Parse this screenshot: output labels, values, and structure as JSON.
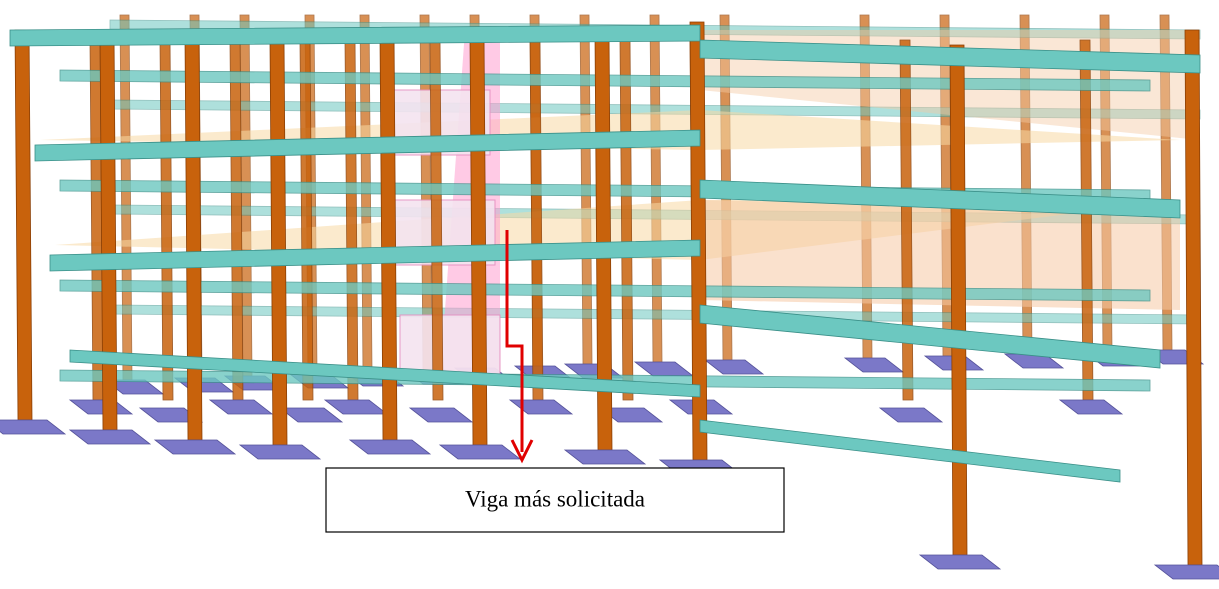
{
  "annotation": {
    "label": "Viga más solicitada"
  }
}
